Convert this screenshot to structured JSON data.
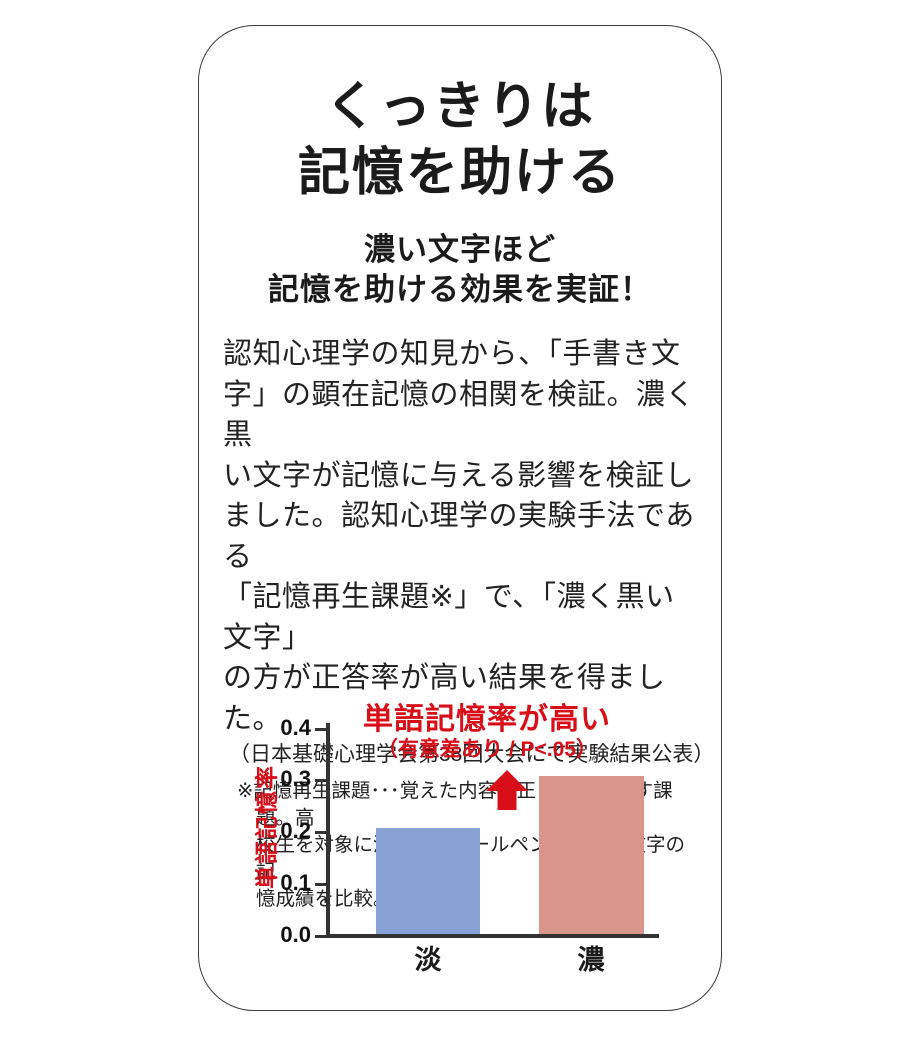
{
  "card": {
    "title_line1": "くっきりは",
    "title_line2": "記憶を助ける",
    "subtitle_line1": "濃い文字ほど",
    "subtitle_line2": "記憶を助ける効果を実証！",
    "body": "認知心理学の知見から、「手書き文\n字」の顕在記憶の相関を検証。濃く黒\nい文字が記憶に与える影響を検証し\nました。認知心理学の実験手法である\n「記憶再生課題※」で、「濃く黒い文字」\nの方が正答率が高い結果を得ました。",
    "source": "（日本基礎心理学会第38回大会にて実験結果公表）",
    "footnote": "※記憶再生課題･･･覚えた内容を正しく思い出す課題。高\n校生を対象に濃淡の黒ボールペンで手書き文字の記\n憶成績を比較。"
  },
  "chart_data": {
    "type": "bar",
    "title": "単語記憶率が高い",
    "subtitle": "（有意差あり / P<.05）",
    "ylabel": "単語記憶率",
    "xlabel": "",
    "categories": [
      "淡",
      "濃"
    ],
    "values": [
      0.205,
      0.305
    ],
    "yticks": [
      "0.4",
      "0.3",
      "0.2",
      "0.1",
      "0.0"
    ],
    "ylim": [
      0,
      0.4
    ],
    "grid": "off",
    "legend": "none",
    "bar_colors": [
      "#87a1d4",
      "#d9948c"
    ],
    "accent_red": "#d80e19",
    "axis_color": "#333333"
  }
}
